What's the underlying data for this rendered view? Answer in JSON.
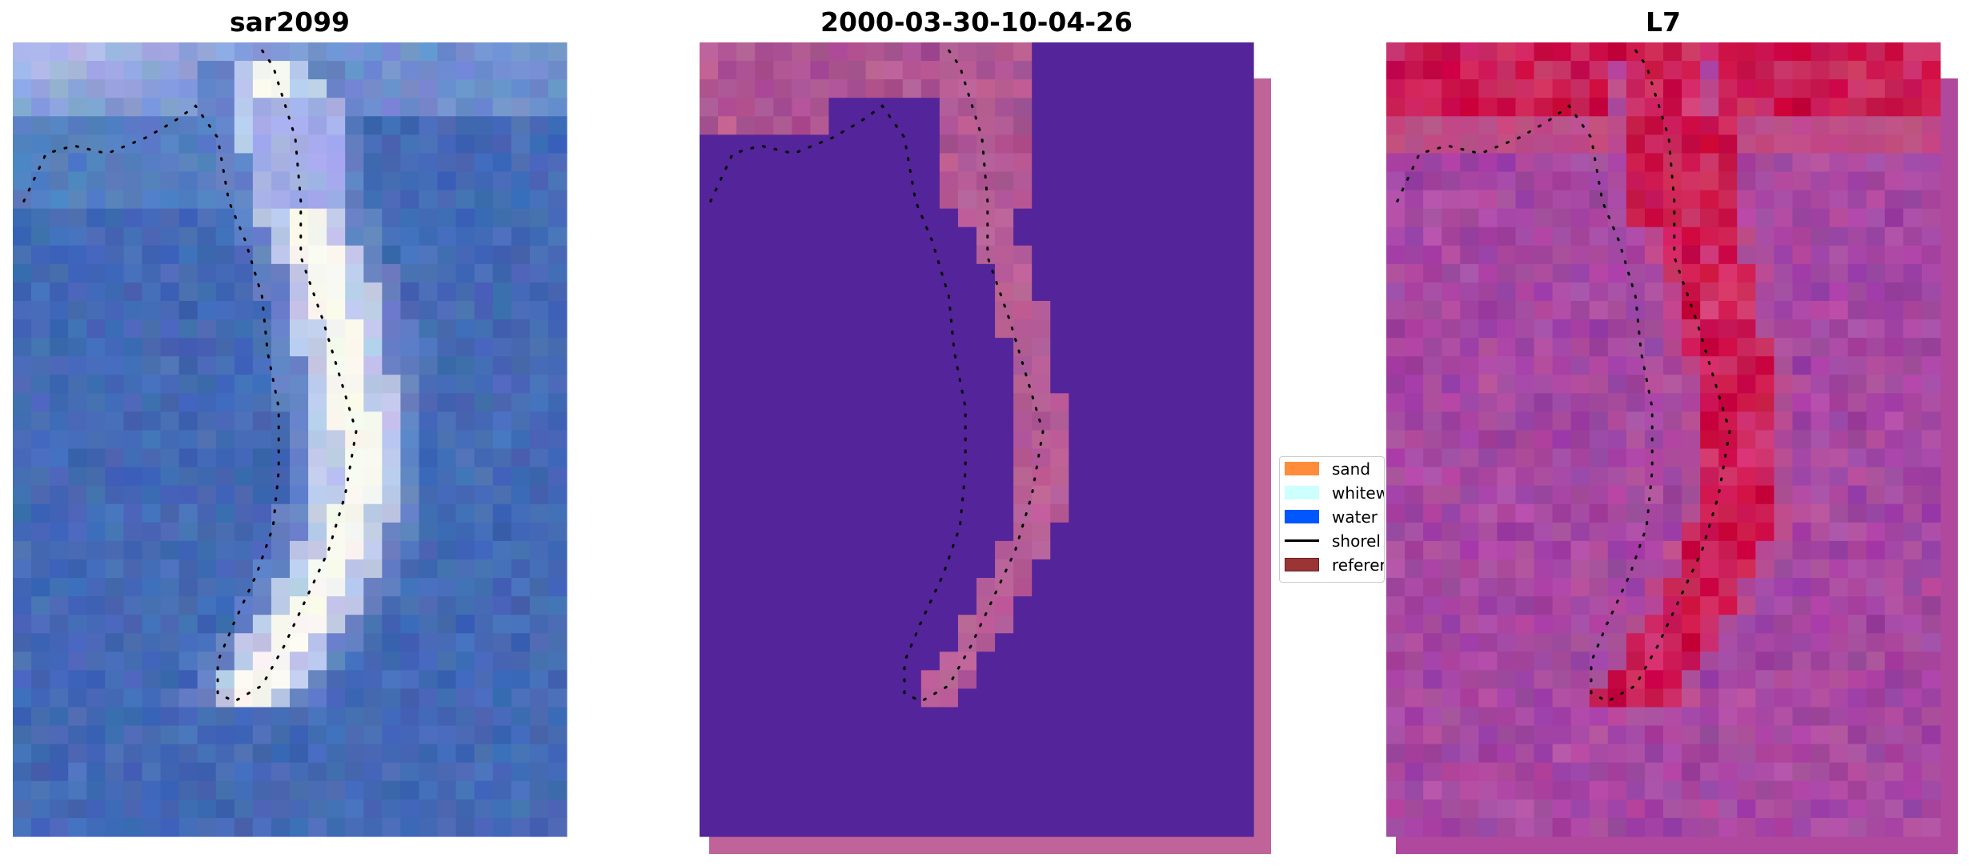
{
  "panels": [
    {
      "title": "sar2099",
      "kind": "satellite-rgb-image"
    },
    {
      "title": "2000-03-30-10-04-26",
      "kind": "classified-image"
    },
    {
      "title": "L7",
      "kind": "index-image"
    }
  ],
  "legend": {
    "items": [
      {
        "label": "sand",
        "color": "#ff8c3a",
        "type": "patch"
      },
      {
        "label": "whitew",
        "color": "#ccfffe",
        "type": "patch"
      },
      {
        "label": "water",
        "color": "#0056ff",
        "type": "patch"
      },
      {
        "label": "shorel",
        "color": "#000000",
        "type": "line"
      },
      {
        "label": "referer",
        "color": "#9b3535",
        "type": "patch"
      }
    ]
  },
  "colors": {
    "sar_water": "#3d64b0",
    "sar_sand": "#f3f3e8",
    "classified_water": "#54249a",
    "classified_land": "#bf6399",
    "index_low": "#9a3f9f",
    "index_high": "#c6003a",
    "shoreline": "#000000"
  }
}
